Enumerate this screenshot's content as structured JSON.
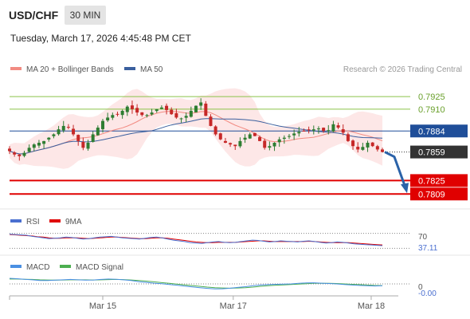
{
  "header": {
    "symbol": "USD/CHF",
    "timeframe": "30 MIN",
    "datetime": "Tuesday, March 17, 2026 4:45:48 PM CET"
  },
  "legend": {
    "ma20_label": "MA 20 + Bollinger Bands",
    "ma50_label": "MA 50",
    "credit": "Research © 2026 Trading Central"
  },
  "colors": {
    "candle_up": "#2e7d32",
    "candle_down": "#c62828",
    "bollinger_fill": "#fde4e4",
    "ma20": "#f28b82",
    "ma50": "#3a5f9e",
    "resistance": "#8bc34a",
    "pivot": "#1f4e99",
    "support": "#e00000",
    "arrow": "#2a62a8",
    "rsi": "#4a6fd0",
    "rsi_ma": "#e00000",
    "macd": "#4a90e2",
    "macd_signal": "#4caf50"
  },
  "chart_data": {
    "type": "candlestick",
    "price_ylim": [
      0.7795,
      0.7945
    ],
    "levels": [
      {
        "value": 0.7925,
        "label": "0.7925",
        "kind": "resistance"
      },
      {
        "value": 0.791,
        "label": "0.7910",
        "kind": "resistance"
      },
      {
        "value": 0.7884,
        "label": "0.7884",
        "kind": "pivot"
      },
      {
        "value": 0.7859,
        "label": "0.7859",
        "kind": "current"
      },
      {
        "value": 0.7825,
        "label": "0.7825",
        "kind": "support"
      },
      {
        "value": 0.7809,
        "label": "0.7809",
        "kind": "support"
      }
    ],
    "close_path": [
      0.786,
      0.7856,
      0.7854,
      0.7858,
      0.7864,
      0.7868,
      0.787,
      0.7872,
      0.7876,
      0.788,
      0.7886,
      0.789,
      0.7888,
      0.788,
      0.7872,
      0.7864,
      0.787,
      0.788,
      0.7888,
      0.7896,
      0.79,
      0.7903,
      0.7904,
      0.7908,
      0.7913,
      0.791,
      0.7906,
      0.7903,
      0.7903,
      0.7906,
      0.791,
      0.7912,
      0.7909,
      0.7904,
      0.79,
      0.7899,
      0.7902,
      0.7908,
      0.7914,
      0.7918,
      0.7902,
      0.789,
      0.788,
      0.7874,
      0.787,
      0.7868,
      0.7866,
      0.7872,
      0.7876,
      0.788,
      0.7878,
      0.7872,
      0.7864,
      0.7866,
      0.787,
      0.7874,
      0.7876,
      0.7878,
      0.7881,
      0.7883,
      0.7884,
      0.7885,
      0.7886,
      0.7887,
      0.7884,
      0.7885,
      0.7892,
      0.7888,
      0.7882,
      0.7872,
      0.7866,
      0.7862,
      0.7865,
      0.787,
      0.7866,
      0.7862,
      0.7859
    ],
    "annotation": "projected decline from 0.7859 toward 0.7809",
    "x_labels": [
      "Mar 15",
      "Mar 17",
      "Mar 18"
    ],
    "x_label_pos": [
      0.25,
      0.6,
      0.97
    ],
    "rsi": {
      "title": "RSI",
      "ma_title": "9MA",
      "level_label": "70",
      "value_label": "37.11",
      "ylim": [
        20,
        80
      ],
      "rsi_values": [
        68,
        67,
        66,
        65,
        62,
        60,
        58,
        56,
        57,
        58,
        60,
        59,
        57,
        55,
        56,
        58,
        60,
        61,
        62,
        60,
        58,
        57,
        56,
        55,
        57,
        59,
        60,
        58,
        55,
        52,
        50,
        48,
        45,
        44,
        43,
        45,
        47,
        48,
        46,
        45,
        46,
        48,
        50,
        52,
        51,
        49,
        47,
        48,
        50,
        49,
        48,
        47,
        49,
        50,
        48,
        46,
        44,
        45,
        47,
        46,
        44,
        42,
        41,
        40,
        39,
        38,
        37.11
      ],
      "ma_values": [
        67,
        66,
        65,
        64,
        63,
        61,
        60,
        58,
        57,
        57,
        58,
        58,
        58,
        57,
        56,
        57,
        58,
        59,
        60,
        60,
        59,
        58,
        57,
        56,
        56,
        57,
        58,
        58,
        57,
        55,
        53,
        51,
        49,
        47,
        46,
        45,
        45,
        46,
        46,
        46,
        46,
        47,
        48,
        49,
        50,
        50,
        49,
        48,
        48,
        48,
        48,
        48,
        48,
        49,
        48,
        47,
        46,
        45,
        45,
        45,
        45,
        44,
        43,
        42,
        41,
        40,
        39
      ]
    },
    "macd": {
      "title": "MACD",
      "signal_title": "MACD Signal",
      "zero_label": "0",
      "value_label": "-0.00",
      "ylim": [
        -0.0006,
        0.0006
      ],
      "macd_values": [
        0.0003,
        0.00028,
        0.00025,
        0.00022,
        0.00018,
        0.00018,
        0.0002,
        0.00022,
        0.00024,
        0.00022,
        0.0002,
        0.00021,
        0.00024,
        0.00026,
        0.00025,
        0.00022,
        0.00018,
        0.00012,
        8e-05,
        4e-05,
        1e-05,
        -3e-05,
        -7e-05,
        -0.00012,
        -0.00016,
        -0.0002,
        -0.00024,
        -0.00027,
        -0.00026,
        -0.00023,
        -0.00019,
        -0.00015,
        -0.0001,
        -6e-05,
        -4e-05,
        -2e-05,
        -1e-05,
        0.0,
        3e-05,
        5e-05,
        6e-05,
        4e-05,
        2e-05,
        0.0,
        -3e-05,
        -6e-05,
        -8e-05,
        -0.0001,
        -0.00011,
        -0.0001
      ],
      "signal_values": [
        0.00026,
        0.00026,
        0.00025,
        0.00024,
        0.00022,
        0.00021,
        0.0002,
        0.00021,
        0.00022,
        0.00022,
        0.00022,
        0.00021,
        0.00022,
        0.00023,
        0.00024,
        0.00023,
        0.00021,
        0.00018,
        0.00015,
        0.00011,
        7e-05,
        3e-05,
        -1e-05,
        -5e-05,
        -9e-05,
        -0.00013,
        -0.00017,
        -0.0002,
        -0.00022,
        -0.00023,
        -0.00022,
        -0.0002,
        -0.00017,
        -0.00013,
        -0.0001,
        -7e-05,
        -5e-05,
        -3e-05,
        -1e-05,
        1e-05,
        3e-05,
        3e-05,
        3e-05,
        2e-05,
        0.0,
        -2e-05,
        -4e-05,
        -6e-05,
        -8e-05,
        -9e-05
      ]
    }
  }
}
